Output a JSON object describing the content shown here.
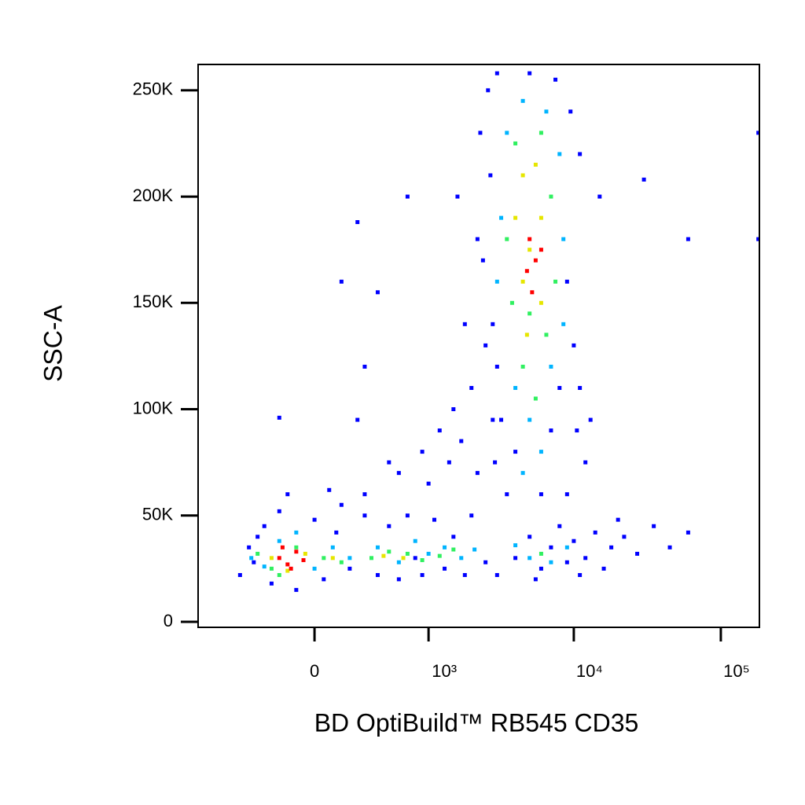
{
  "chart_data": {
    "type": "scatter",
    "x_label": "BD OptiBuild™ RB545 CD35",
    "y_label": "SSC-A",
    "xscale": "biexponential",
    "xlim": [
      -1040,
      183000
    ],
    "xticks": [
      0,
      {
        "value": 1000,
        "label": "10³"
      },
      {
        "value": 10000,
        "label": "10⁴"
      },
      {
        "value": 100000,
        "label": "10⁵"
      }
    ],
    "ylim": [
      -2600,
      262144
    ],
    "yticks": [
      0,
      {
        "value": 50000,
        "label": "50K"
      },
      {
        "value": 100000,
        "label": "100K"
      },
      {
        "value": 150000,
        "label": "150K"
      },
      {
        "value": 200000,
        "label": "200K"
      },
      {
        "value": 250000,
        "label": "250K"
      }
    ],
    "series": [
      {
        "color": "#0000ff",
        "x": [
          -500,
          -420,
          -380,
          -300,
          -250,
          -200,
          -100,
          0,
          50,
          120,
          200,
          150,
          -350,
          -150,
          80,
          300,
          400,
          500,
          600,
          700,
          800,
          900,
          1100,
          1300,
          1500,
          1800,
          2000,
          2500,
          300,
          600,
          1000,
          1400,
          1700,
          2200,
          2800,
          1200,
          900,
          500,
          250,
          2000,
          1500,
          2500,
          1800,
          2200,
          1600,
          700,
          400,
          300,
          150,
          250,
          2600,
          3000,
          5000,
          7500,
          9500,
          11000,
          2300,
          2700,
          2400,
          2800,
          3000,
          9000,
          10000,
          11000,
          10500,
          12000,
          9000,
          3200,
          4000,
          6000,
          7000,
          8000,
          3500,
          2900,
          13000,
          15000,
          3000,
          4000,
          5000,
          6000,
          7000,
          8000,
          9000,
          10000,
          12000,
          14000,
          16000,
          18000,
          22000,
          27000,
          35000,
          45000,
          60000,
          20000,
          11000,
          5500,
          180000,
          180000,
          60000,
          30000,
          -200
        ],
        "values": [
          22000,
          35000,
          28000,
          45000,
          18000,
          52000,
          15000,
          48000,
          20000,
          42000,
          25000,
          55000,
          40000,
          60000,
          62000,
          50000,
          22000,
          45000,
          20000,
          50000,
          30000,
          22000,
          48000,
          25000,
          40000,
          22000,
          50000,
          28000,
          60000,
          70000,
          65000,
          75000,
          85000,
          70000,
          95000,
          90000,
          80000,
          75000,
          95000,
          110000,
          100000,
          130000,
          140000,
          180000,
          200000,
          200000,
          155000,
          120000,
          160000,
          188000,
          250000,
          258000,
          258000,
          255000,
          240000,
          220000,
          230000,
          210000,
          170000,
          140000,
          120000,
          160000,
          130000,
          110000,
          90000,
          75000,
          60000,
          95000,
          80000,
          60000,
          90000,
          110000,
          60000,
          75000,
          95000,
          200000,
          22000,
          30000,
          40000,
          25000,
          35000,
          45000,
          28000,
          38000,
          30000,
          42000,
          25000,
          35000,
          40000,
          32000,
          45000,
          35000,
          42000,
          48000,
          22000,
          20000,
          230000,
          180000,
          180000,
          208000,
          96000
        ]
      },
      {
        "color": "#00b4ff",
        "x": [
          -400,
          -300,
          -200,
          0,
          100,
          200,
          -100,
          400,
          600,
          800,
          1000,
          1300,
          1700,
          2100,
          3500,
          4500,
          6500,
          8000,
          3200,
          8500,
          3000,
          8500,
          4000,
          7000,
          5000,
          6000,
          4500,
          5000,
          7000,
          9000,
          4000
        ],
        "values": [
          30000,
          26000,
          38000,
          25000,
          35000,
          30000,
          42000,
          35000,
          28000,
          38000,
          32000,
          35000,
          30000,
          34000,
          230000,
          245000,
          240000,
          220000,
          190000,
          180000,
          160000,
          140000,
          110000,
          120000,
          95000,
          80000,
          70000,
          30000,
          28000,
          35000,
          36000
        ]
      },
      {
        "color": "#30f060",
        "x": [
          -350,
          -250,
          -100,
          50,
          150,
          -200,
          350,
          500,
          700,
          900,
          1200,
          1500,
          4000,
          6000,
          7000,
          3500,
          7500,
          3800,
          6500,
          4500,
          5500,
          5000,
          6000
        ],
        "values": [
          32000,
          25000,
          35000,
          30000,
          28000,
          22000,
          30000,
          33000,
          32000,
          29000,
          31000,
          34000,
          225000,
          230000,
          200000,
          180000,
          160000,
          150000,
          135000,
          120000,
          105000,
          145000,
          32000
        ]
      },
      {
        "color": "#e6e600",
        "x": [
          -250,
          -50,
          100,
          -150,
          450,
          650,
          4500,
          5500,
          4000,
          6000,
          5000,
          4500,
          6000,
          4800
        ],
        "values": [
          30000,
          32000,
          30000,
          24000,
          31000,
          30000,
          210000,
          215000,
          190000,
          190000,
          175000,
          160000,
          150000,
          135000
        ]
      },
      {
        "color": "#ff0000",
        "x": [
          -200,
          -150,
          -100,
          -180,
          -130,
          -60,
          5000,
          5500,
          4800,
          5200,
          6000
        ],
        "values": [
          30000,
          27000,
          33000,
          35000,
          25000,
          29000,
          180000,
          170000,
          165000,
          155000,
          175000
        ]
      }
    ]
  }
}
